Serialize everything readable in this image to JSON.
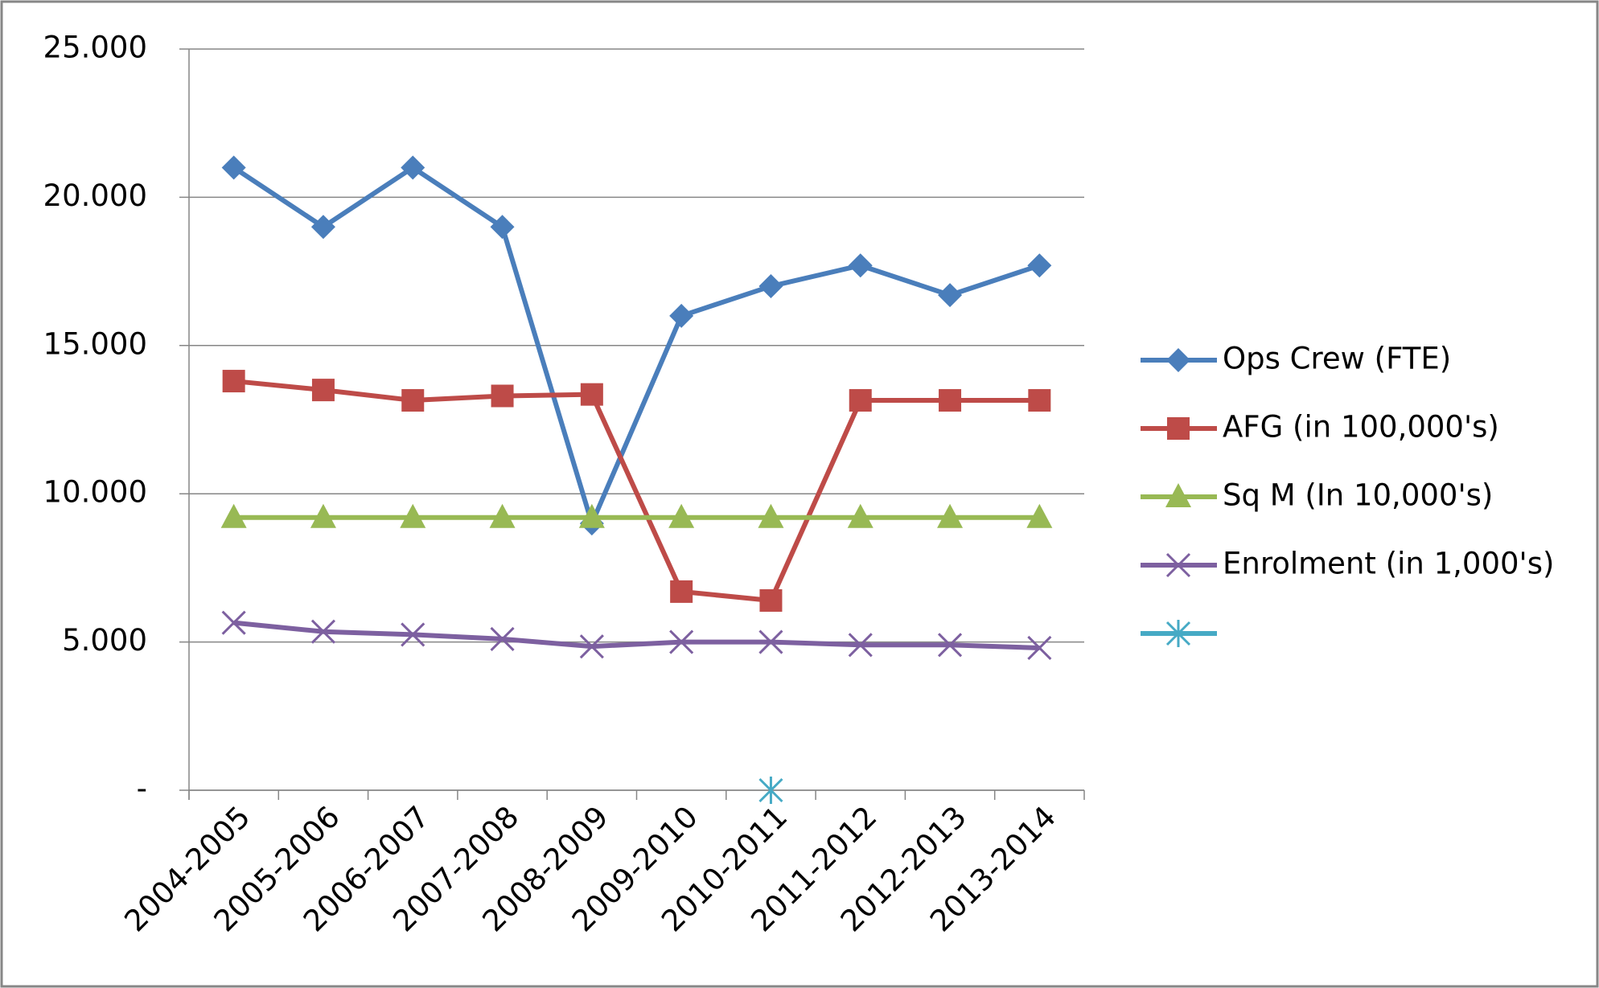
{
  "chart_data": {
    "type": "line",
    "categories": [
      "2004-2005",
      "2005-2006",
      "2006-2007",
      "2007-2008",
      "2008-2009",
      "2009-2010",
      "2010-2011",
      "2011-2012",
      "2012-2013",
      "2013-2014"
    ],
    "series": [
      {
        "name": "Ops Crew (FTE)",
        "color": "#4a7ebb",
        "marker": "diamond",
        "values": [
          21,
          19,
          21,
          19,
          9,
          16,
          17,
          17.7,
          16.7,
          17.7
        ]
      },
      {
        "name": "AFG (in  100,000's)",
        "color": "#be4b48",
        "marker": "square",
        "values": [
          13.8,
          13.5,
          13.15,
          13.3,
          13.35,
          6.7,
          6.4,
          13.15,
          13.15,
          13.15
        ]
      },
      {
        "name": "Sq M (In 10,000's)",
        "color": "#98b954",
        "marker": "triangle",
        "values": [
          9.2,
          9.2,
          9.2,
          9.2,
          9.2,
          9.2,
          9.2,
          9.2,
          9.2,
          9.2
        ]
      },
      {
        "name": "Enrolment (in 1,000's)",
        "color": "#7d60a0",
        "marker": "x",
        "values": [
          5.65,
          5.35,
          5.25,
          5.1,
          4.85,
          5.0,
          5.0,
          4.9,
          4.9,
          4.8
        ]
      },
      {
        "color": "#46aac5",
        "marker": "star",
        "values": [
          null,
          null,
          null,
          null,
          null,
          null,
          0,
          null,
          null,
          null
        ]
      }
    ],
    "ylim": [
      0,
      25
    ],
    "yticks": [
      {
        "value": 0,
        "label": "-"
      },
      {
        "value": 5,
        "label": "5.000"
      },
      {
        "value": 10,
        "label": "10.000"
      },
      {
        "value": 15,
        "label": "15.000"
      },
      {
        "value": 20,
        "label": "20.000"
      },
      {
        "value": 25,
        "label": "25.000"
      }
    ],
    "grid": true,
    "legend": "right"
  }
}
